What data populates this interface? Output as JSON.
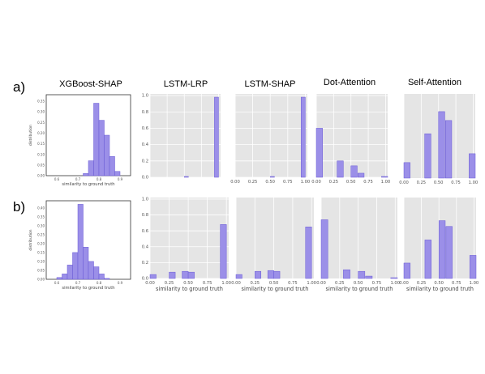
{
  "row_labels": [
    "a)",
    "b)"
  ],
  "column_titles": [
    "XGBoost-SHAP",
    "LSTM-LRP",
    "LSTM-SHAP",
    "Dot-Attention",
    "Self-Attention"
  ],
  "colors": {
    "bar": "#9b8fe8",
    "bar_stroke": "#6a5bd6",
    "panel_bg": "#e5e5e5",
    "grid": "#ffffff"
  },
  "chart_data": [
    {
      "id": "a-xgboost",
      "type": "bar",
      "title": "XGBoost-SHAP",
      "xlabel": "similarity to ground truth",
      "ylabel": "distribution",
      "grid": false,
      "xlim": [
        0.55,
        0.95
      ],
      "ylim": [
        0,
        0.38
      ],
      "xticks": [
        0.6,
        0.7,
        0.8,
        0.9
      ],
      "xtick_labels": [
        "0.6",
        "0.7",
        "0.8",
        "0.9"
      ],
      "yticks": [
        0,
        0.05,
        0.1,
        0.15,
        0.2,
        0.25,
        0.3,
        0.35
      ],
      "ytick_labels": [
        "0.00",
        "0.05",
        "0.10",
        "0.15",
        "0.20",
        "0.25",
        "0.30",
        "0.35"
      ],
      "bin_width": 0.025,
      "bins": [
        0.725,
        0.75,
        0.775,
        0.8,
        0.825,
        0.85,
        0.875
      ],
      "values": [
        0.01,
        0.07,
        0.34,
        0.26,
        0.19,
        0.09,
        0.02
      ]
    },
    {
      "id": "a-lstm-lrp",
      "type": "bar",
      "title": "LSTM-LRP",
      "xlabel": "",
      "ylabel": "",
      "grid": true,
      "xlim": [
        0,
        1.03
      ],
      "ylim": [
        0,
        1.02
      ],
      "xticks": [
        0,
        0.25,
        0.5,
        0.75,
        1.0
      ],
      "xtick_labels": [],
      "yticks": [
        0,
        0.2,
        0.4,
        0.6,
        0.8,
        1.0
      ],
      "ytick_labels": [
        "0.0",
        "0.2",
        "0.4",
        "0.6",
        "0.8",
        "1.0"
      ],
      "bin_width": 0.06,
      "bins": [
        0.5,
        0.94
      ],
      "values": [
        0.01,
        0.98
      ]
    },
    {
      "id": "a-lstm-shap",
      "type": "bar",
      "title": "LSTM-SHAP",
      "xlabel": "",
      "ylabel": "",
      "grid": true,
      "xlim": [
        0,
        1.03
      ],
      "ylim": [
        0,
        1.02
      ],
      "xticks": [
        0,
        0.25,
        0.5,
        0.75,
        1.0
      ],
      "xtick_labels": [
        "0.00",
        "0.25",
        "0.50",
        "0.75",
        "1.00"
      ],
      "yticks": [
        0,
        0.2,
        0.4,
        0.6,
        0.8,
        1.0
      ],
      "ytick_labels": [],
      "bin_width": 0.06,
      "bins": [
        0.5,
        0.94
      ],
      "values": [
        0.01,
        0.98
      ]
    },
    {
      "id": "a-dot-attention",
      "type": "bar",
      "title": "Dot-Attention",
      "xlabel": "",
      "ylabel": "",
      "grid": true,
      "xlim": [
        0,
        1.03
      ],
      "ylim": [
        0,
        1.02
      ],
      "xticks": [
        0,
        0.25,
        0.5,
        0.75,
        1.0
      ],
      "xtick_labels": [
        "0.00",
        "0.25",
        "0.50",
        "0.75",
        "1.00"
      ],
      "yticks": [
        0,
        0.2,
        0.4,
        0.6,
        0.8,
        1.0
      ],
      "ytick_labels": [],
      "bin_width": 0.09,
      "bins": [
        0.0,
        0.3,
        0.5,
        0.6,
        0.94
      ],
      "values": [
        0.6,
        0.2,
        0.14,
        0.05,
        0.01
      ]
    },
    {
      "id": "a-self-attention",
      "type": "bar",
      "title": "Self-Attention",
      "xlabel": "",
      "ylabel": "",
      "grid": true,
      "xlim": [
        0,
        1.03
      ],
      "ylim": [
        0,
        0.38
      ],
      "xticks": [
        0,
        0.25,
        0.5,
        0.75,
        1.0
      ],
      "xtick_labels": [
        "0.00",
        "0.25",
        "0.50",
        "0.75",
        "1.00"
      ],
      "yticks": [],
      "ytick_labels": [],
      "bin_width": 0.09,
      "bins": [
        0.0,
        0.3,
        0.5,
        0.6,
        0.94
      ],
      "values": [
        0.07,
        0.2,
        0.3,
        0.26,
        0.11
      ]
    },
    {
      "id": "b-xgboost",
      "type": "bar",
      "title": "",
      "xlabel": "similarity to ground truth",
      "ylabel": "distribution",
      "grid": false,
      "xlim": [
        0.55,
        0.95
      ],
      "ylim": [
        0,
        0.44
      ],
      "xticks": [
        0.6,
        0.7,
        0.8,
        0.9
      ],
      "xtick_labels": [
        "0.6",
        "0.7",
        "0.8",
        "0.9"
      ],
      "yticks": [
        0,
        0.05,
        0.1,
        0.15,
        0.2,
        0.25,
        0.3,
        0.35,
        0.4
      ],
      "ytick_labels": [
        "0.00",
        "0.05",
        "0.10",
        "0.15",
        "0.20",
        "0.25",
        "0.30",
        "0.35",
        "0.40"
      ],
      "bin_width": 0.025,
      "bins": [
        0.6,
        0.625,
        0.65,
        0.675,
        0.7,
        0.725,
        0.75,
        0.775,
        0.8,
        0.825
      ],
      "values": [
        0.01,
        0.03,
        0.08,
        0.15,
        0.42,
        0.18,
        0.1,
        0.07,
        0.03,
        0.005
      ]
    },
    {
      "id": "b-lstm-lrp",
      "type": "bar",
      "title": "",
      "xlabel": "similarity to ground truth",
      "ylabel": "",
      "grid": true,
      "xlim": [
        0,
        1.03
      ],
      "ylim": [
        0,
        1.02
      ],
      "xticks": [
        0,
        0.25,
        0.5,
        0.75,
        1.0
      ],
      "xtick_labels": [
        "0.00",
        "0.25",
        "0.50",
        "0.75",
        "1.00"
      ],
      "yticks": [
        0,
        0.2,
        0.4,
        0.6,
        0.8,
        1.0
      ],
      "ytick_labels": [
        "0.0",
        "0.2",
        "0.4",
        "0.6",
        "0.8",
        "1.0"
      ],
      "bin_width": 0.08,
      "bins": [
        0.0,
        0.25,
        0.42,
        0.5,
        0.92
      ],
      "values": [
        0.05,
        0.08,
        0.09,
        0.08,
        0.68
      ]
    },
    {
      "id": "b-lstm-shap",
      "type": "bar",
      "title": "",
      "xlabel": "similarity to ground truth",
      "ylabel": "",
      "grid": true,
      "xlim": [
        0,
        1.03
      ],
      "ylim": [
        0,
        1.02
      ],
      "xticks": [
        0,
        0.25,
        0.5,
        0.75,
        1.0
      ],
      "xtick_labels": [
        "0.00",
        "0.25",
        "0.50",
        "0.75",
        "1.00"
      ],
      "yticks": [],
      "ytick_labels": [],
      "bin_width": 0.08,
      "bins": [
        0.0,
        0.25,
        0.42,
        0.5,
        0.92
      ],
      "values": [
        0.05,
        0.09,
        0.1,
        0.09,
        0.65
      ]
    },
    {
      "id": "b-dot-attention",
      "type": "bar",
      "title": "",
      "xlabel": "similarity to ground truth",
      "ylabel": "",
      "grid": true,
      "xlim": [
        0,
        1.03
      ],
      "ylim": [
        0,
        1.02
      ],
      "xticks": [
        0,
        0.25,
        0.5,
        0.75,
        1.0
      ],
      "xtick_labels": [
        "0.00",
        "0.25",
        "0.50",
        "0.75",
        "1.00"
      ],
      "yticks": [],
      "ytick_labels": [],
      "bin_width": 0.09,
      "bins": [
        0.0,
        0.3,
        0.5,
        0.6,
        0.94
      ],
      "values": [
        0.74,
        0.11,
        0.09,
        0.03,
        0.01
      ]
    },
    {
      "id": "b-self-attention",
      "type": "bar",
      "title": "",
      "xlabel": "similarity to ground truth",
      "ylabel": "",
      "grid": true,
      "xlim": [
        0,
        1.03
      ],
      "ylim": [
        0,
        0.42
      ],
      "xticks": [
        0,
        0.25,
        0.5,
        0.75,
        1.0
      ],
      "xtick_labels": [
        "0.00",
        "0.25",
        "0.50",
        "0.75",
        "1.00"
      ],
      "yticks": [],
      "ytick_labels": [],
      "bin_width": 0.09,
      "bins": [
        0.0,
        0.3,
        0.5,
        0.6,
        0.94
      ],
      "values": [
        0.08,
        0.2,
        0.3,
        0.27,
        0.12
      ]
    }
  ]
}
